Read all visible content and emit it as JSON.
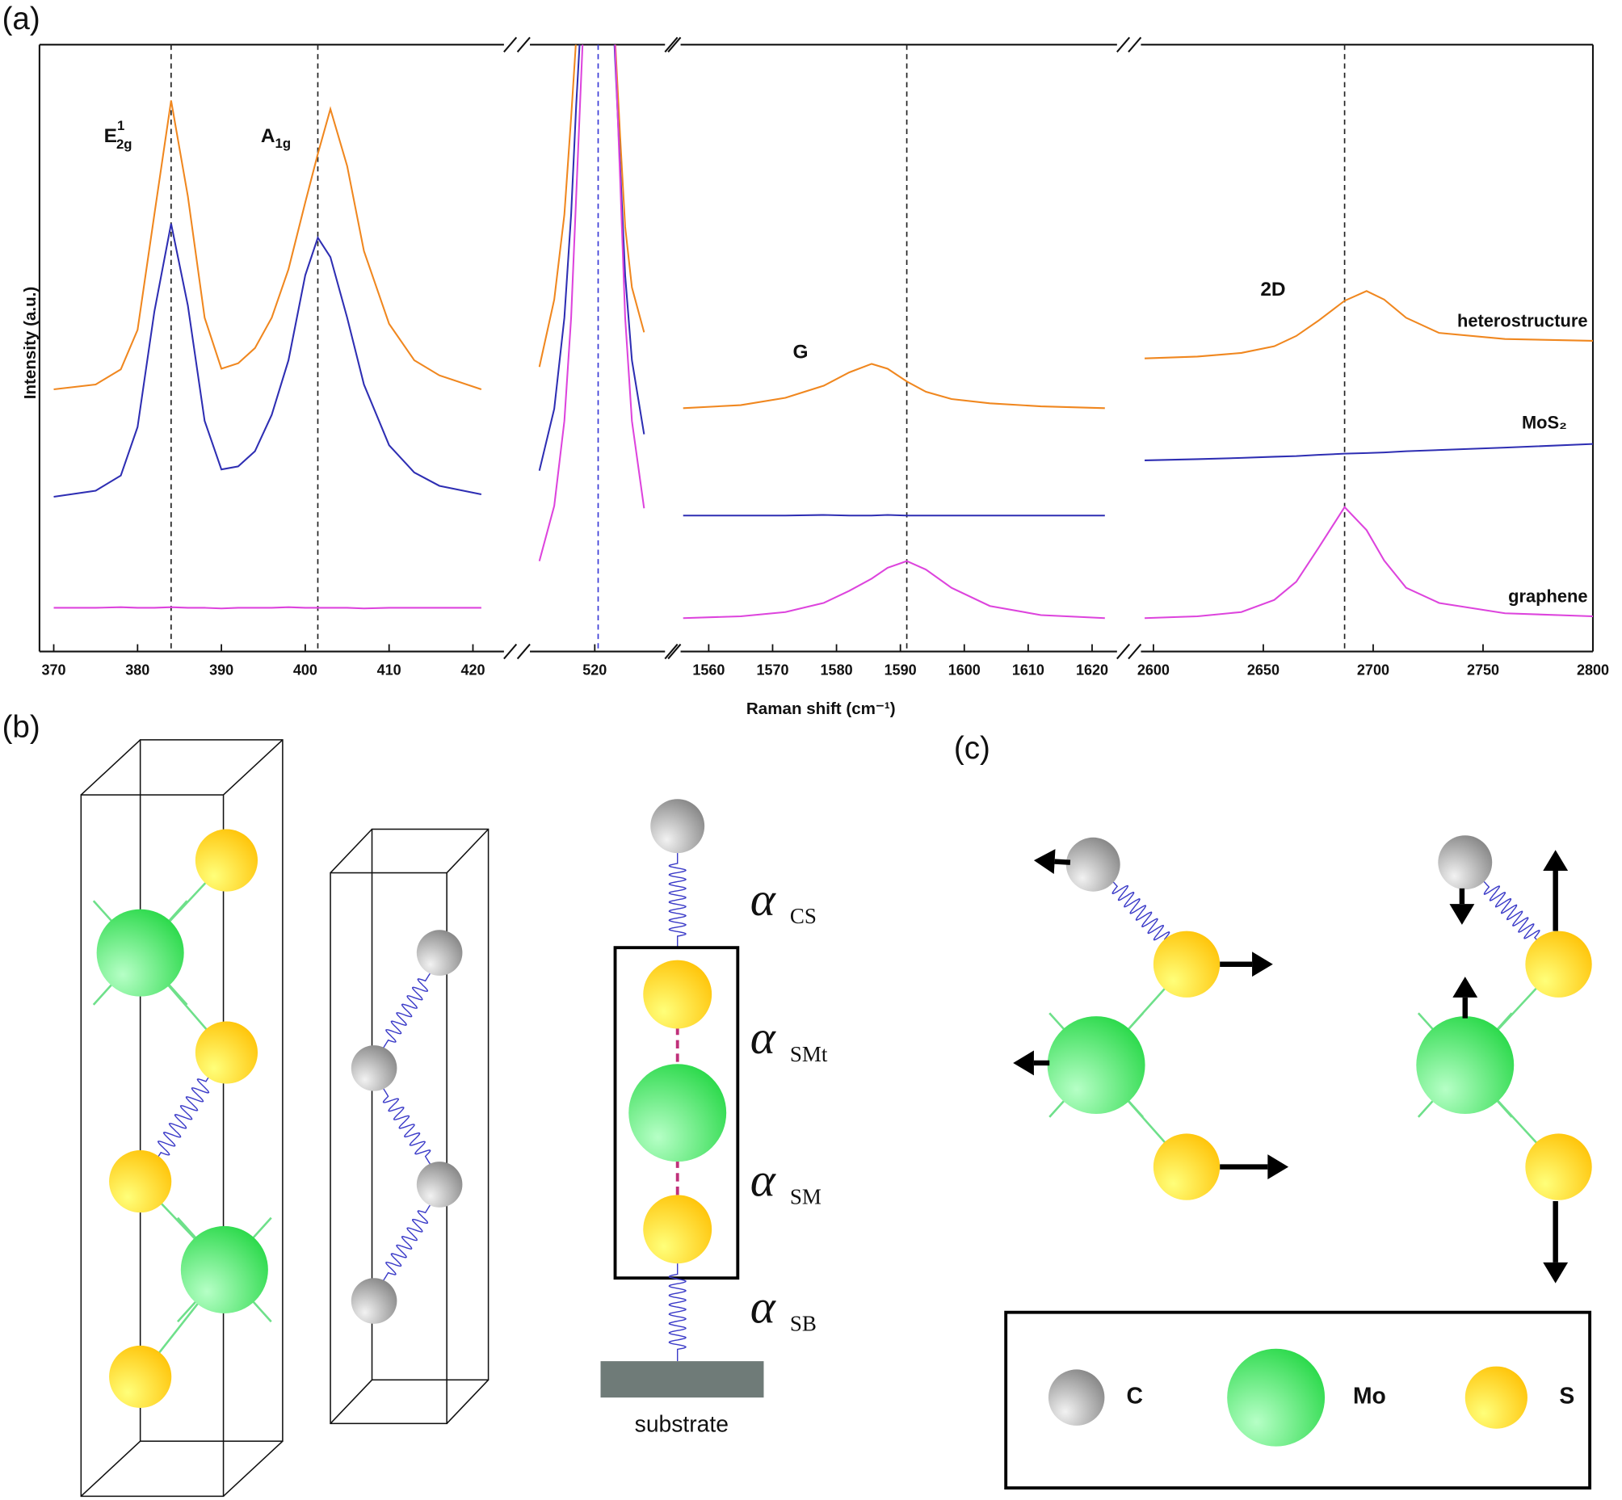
{
  "chart_data": {
    "type": "line",
    "panel_label": "(a)",
    "x_label": "Raman shift (cm⁻¹)",
    "y_label": "Intensity (a.u.)",
    "ylim": [
      0,
      100
    ],
    "series": [
      {
        "name": "heterostructure",
        "color": "#f0871f"
      },
      {
        "name": "MoS₂",
        "color": "#2e2eb3"
      },
      {
        "name": "graphene",
        "color": "#dd44dd"
      }
    ],
    "segments": [
      {
        "xlim": [
          368.3,
          423.7
        ],
        "xticks": [
          370,
          380,
          390,
          400,
          410,
          420
        ],
        "reference_lines": [
          384,
          401.5
        ],
        "reference_color": "#222222",
        "x": [
          370,
          375,
          378,
          380,
          382,
          384,
          386,
          388,
          390,
          392,
          394,
          396,
          398,
          400,
          401.5,
          403,
          405,
          407,
          410,
          413,
          416,
          421
        ],
        "values": [
          [
            43.2,
            44.0,
            46.5,
            53,
            72,
            90.8,
            75,
            55,
            46.6,
            47.5,
            50,
            55,
            63,
            74,
            82,
            89.4,
            80,
            66,
            54,
            48,
            45.5,
            43.2
          ],
          [
            25.5,
            26.5,
            29,
            37,
            56,
            70.5,
            57,
            38,
            30,
            30.5,
            33,
            39,
            48,
            62,
            68.2,
            65,
            55,
            44,
            34,
            29.5,
            27.3,
            25.9
          ],
          [
            7.2,
            7.2,
            7.3,
            7.2,
            7.2,
            7.3,
            7.2,
            7.2,
            7.1,
            7.2,
            7.2,
            7.2,
            7.3,
            7.2,
            7.2,
            7.2,
            7.2,
            7.1,
            7.2,
            7.2,
            7.2,
            7.2
          ]
        ]
      },
      {
        "xlim": [
          500.8,
          540.8
        ],
        "xticks": [
          520
        ],
        "reference_lines": [
          521
        ],
        "reference_color": "#3a3ad6",
        "x": [
          503.6,
          508,
          511,
          513,
          514.5,
          516,
          521,
          526,
          527.5,
          529,
          531,
          534.6
        ],
        "values": [
          [
            46.9,
            58,
            72,
            88,
            101,
            120,
            160,
            101,
            85,
            70,
            60,
            52.6
          ],
          [
            29.8,
            40,
            55,
            72,
            90,
            105,
            160,
            98,
            80,
            62,
            48,
            35.8
          ],
          [
            14.9,
            24,
            38,
            55,
            75,
            95,
            160,
            100,
            78,
            55,
            38,
            23.6
          ]
        ]
      },
      {
        "xlim": [
          1555.6,
          1623.9
        ],
        "xticks": [
          1560,
          1570,
          1580,
          1590,
          1600,
          1610,
          1620
        ],
        "reference_lines": [
          1591
        ],
        "reference_color": "#222222",
        "x": [
          1556,
          1565,
          1572,
          1578,
          1582,
          1585.5,
          1588,
          1591,
          1594,
          1598,
          1604,
          1612,
          1622
        ],
        "values": [
          [
            40.1,
            40.6,
            41.8,
            43.8,
            46,
            47.4,
            46.6,
            44.5,
            42.8,
            41.6,
            40.9,
            40.4,
            40.1
          ],
          [
            22.4,
            22.4,
            22.4,
            22.5,
            22.4,
            22.4,
            22.5,
            22.4,
            22.4,
            22.4,
            22.4,
            22.4,
            22.4
          ],
          [
            5.5,
            5.8,
            6.5,
            8,
            10,
            12,
            13.8,
            14.9,
            13.5,
            10.5,
            7.5,
            6,
            5.5
          ]
        ]
      },
      {
        "xlim": [
          2594.3,
          2800
        ],
        "xticks": [
          2600,
          2650,
          2700,
          2750,
          2800
        ],
        "reference_lines": [
          2687
        ],
        "reference_color": "#222222",
        "x": [
          2596,
          2620,
          2640,
          2655,
          2665,
          2675,
          2687,
          2697,
          2705,
          2715,
          2730,
          2760,
          2800
        ],
        "values": [
          [
            48.3,
            48.6,
            49.2,
            50.3,
            52,
            54.5,
            57.8,
            59.4,
            58,
            55,
            52.5,
            51.5,
            51.2
          ],
          [
            31.5,
            31.7,
            31.9,
            32.1,
            32.2,
            32.4,
            32.6,
            32.7,
            32.8,
            33,
            33.2,
            33.6,
            34.2
          ],
          [
            5.5,
            5.8,
            6.5,
            8.5,
            11.5,
            17,
            23.8,
            20,
            15,
            10.5,
            8,
            6.3,
            5.8
          ]
        ]
      }
    ],
    "annotations": [
      {
        "text": "E",
        "sup": "1",
        "sub": "2g"
      },
      {
        "text": "A",
        "sub": "1g"
      },
      {
        "text": "G"
      },
      {
        "text": "2D"
      }
    ]
  },
  "panel_b": {
    "label": "(b)",
    "springs": [
      {
        "symbol": "α",
        "sub": "CS"
      },
      {
        "symbol": "α",
        "sub": "SMt"
      },
      {
        "symbol": "α",
        "sub": "SM"
      },
      {
        "symbol": "α",
        "sub": "SB"
      }
    ],
    "substrate": "substrate"
  },
  "panel_c": {
    "label": "(c)",
    "legend": [
      "C",
      "Mo",
      "S"
    ]
  }
}
